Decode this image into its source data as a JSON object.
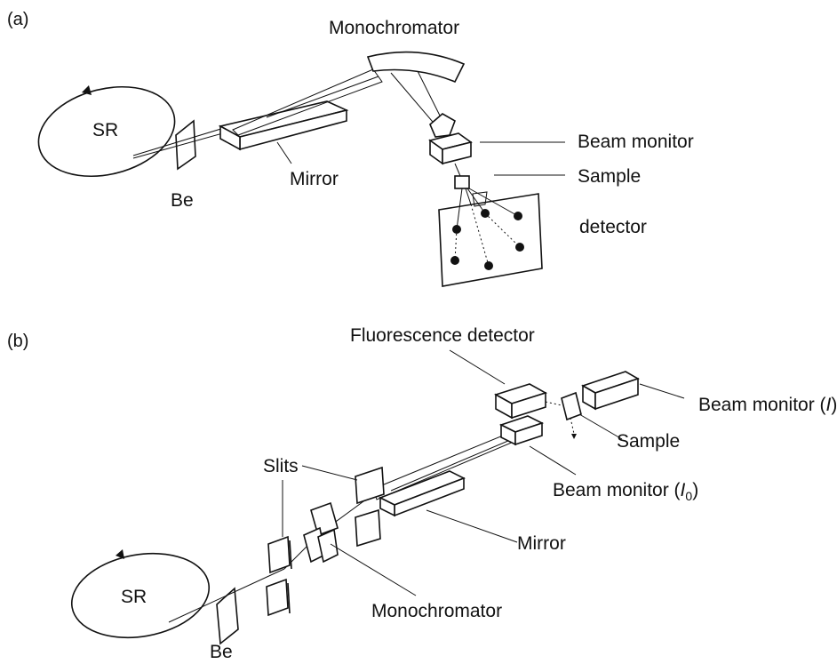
{
  "panel_a": {
    "tag": "(a)",
    "labels": {
      "monochromator": "Monochromator",
      "sr": "SR",
      "mirror": "Mirror",
      "be": "Be",
      "beam_monitor": "Beam monitor",
      "sample": "Sample",
      "detector": "detector"
    }
  },
  "panel_b": {
    "tag": "(b)",
    "labels": {
      "fluorescence_detector": "Fluorescence detector",
      "beam_monitor_i_prefix": "Beam monitor (",
      "beam_monitor_i_var": "I",
      "beam_monitor_i_suffix": ")",
      "slits": "Slits",
      "sample": "Sample",
      "beam_monitor_i0_prefix": "Beam monitor (",
      "beam_monitor_i0_var": "I",
      "beam_monitor_i0_sub": "0",
      "beam_monitor_i0_suffix": ")",
      "mirror": "Mirror",
      "sr": "SR",
      "monochromator": "Monochromator",
      "be": "Be"
    }
  }
}
